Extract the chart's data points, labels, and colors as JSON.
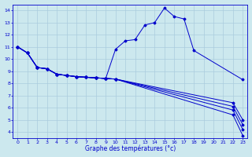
{
  "xlabel": "Graphe des températures (°c)",
  "background_color": "#cce8ee",
  "grid_color": "#aaccdd",
  "line_color": "#0000cc",
  "xlim": [
    -0.5,
    23.5
  ],
  "ylim": [
    3.5,
    14.5
  ],
  "yticks": [
    4,
    5,
    6,
    7,
    8,
    9,
    10,
    11,
    12,
    13,
    14
  ],
  "xticks": [
    0,
    1,
    2,
    3,
    4,
    5,
    6,
    7,
    8,
    9,
    10,
    11,
    12,
    13,
    14,
    15,
    16,
    17,
    18,
    19,
    20,
    21,
    22,
    23
  ],
  "series": [
    {
      "x": [
        0,
        1,
        2,
        3,
        4,
        5,
        6,
        7,
        8,
        9,
        10,
        11,
        12,
        13,
        14,
        15,
        16,
        17,
        18,
        23
      ],
      "y": [
        11.0,
        10.5,
        9.3,
        9.2,
        8.75,
        8.65,
        8.55,
        8.5,
        8.45,
        8.4,
        10.8,
        11.5,
        11.6,
        12.8,
        13.0,
        14.2,
        13.5,
        13.3,
        10.7,
        8.3
      ]
    },
    {
      "x": [
        0,
        1,
        2,
        3,
        4,
        5,
        6,
        7,
        8,
        9,
        10,
        22,
        23
      ],
      "y": [
        11.0,
        10.5,
        9.3,
        9.2,
        8.75,
        8.65,
        8.55,
        8.5,
        8.45,
        8.4,
        8.35,
        5.4,
        3.7
      ]
    },
    {
      "x": [
        0,
        1,
        2,
        3,
        4,
        5,
        6,
        7,
        8,
        9,
        10,
        22,
        23
      ],
      "y": [
        11.0,
        10.5,
        9.3,
        9.2,
        8.75,
        8.65,
        8.55,
        8.5,
        8.45,
        8.4,
        8.35,
        5.8,
        4.2
      ]
    },
    {
      "x": [
        0,
        1,
        2,
        3,
        4,
        5,
        6,
        7,
        8,
        9,
        10,
        22,
        23
      ],
      "y": [
        11.0,
        10.5,
        9.3,
        9.2,
        8.75,
        8.65,
        8.55,
        8.5,
        8.45,
        8.4,
        8.35,
        6.1,
        4.6
      ]
    },
    {
      "x": [
        0,
        1,
        2,
        3,
        4,
        5,
        6,
        7,
        8,
        9,
        10,
        22,
        23
      ],
      "y": [
        11.0,
        10.5,
        9.3,
        9.2,
        8.75,
        8.65,
        8.55,
        8.5,
        8.45,
        8.4,
        8.35,
        6.4,
        5.0
      ]
    }
  ]
}
